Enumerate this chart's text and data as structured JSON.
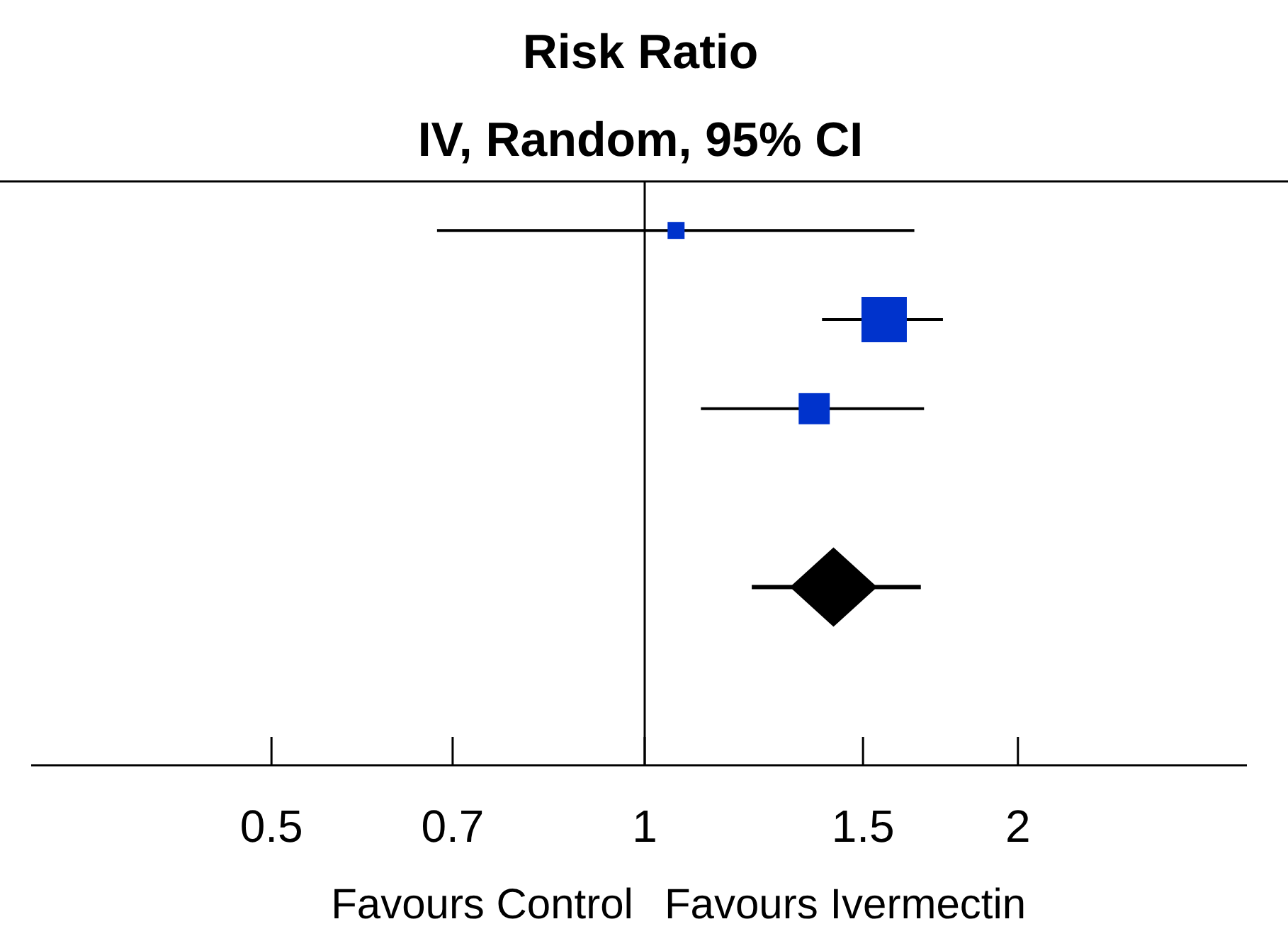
{
  "chart_data": {
    "type": "scatter",
    "title": "Risk Ratio",
    "subtitle": "IV, Random, 95% CI",
    "orientation": "horizontal",
    "categories": [
      null,
      null,
      null,
      null,
      null,
      null
    ],
    "log": "x",
    "xlim": [
      0.32,
      3.06
    ],
    "xticks": [
      0.5,
      0.7,
      1,
      1.5,
      2
    ],
    "ref_lines": [
      {
        "axis": "x",
        "value": 1,
        "color": "#000000"
      }
    ],
    "annotations": [
      "Favours Control",
      "Favours Ivermectin"
    ],
    "series": [
      {
        "type": "bubble",
        "color": "#0033cc",
        "marker": "square",
        "values": [
          1.06,
          1.56,
          1.37,
          null,
          null,
          null
        ],
        "errors": [
          [
            0.68,
            1.65
          ],
          [
            1.39,
            1.74
          ],
          [
            1.11,
            1.68
          ],
          null,
          null,
          null
        ],
        "sizes": [
          0.14,
          1,
          0.47,
          null,
          null,
          null
        ]
      },
      {
        "type": "scatter",
        "color": "#000000",
        "marker": "diamond",
        "values": [
          null,
          null,
          null,
          null,
          1.42,
          null
        ],
        "errors": [
          null,
          null,
          null,
          null,
          [
            1.22,
            1.67
          ],
          null
        ]
      }
    ]
  }
}
